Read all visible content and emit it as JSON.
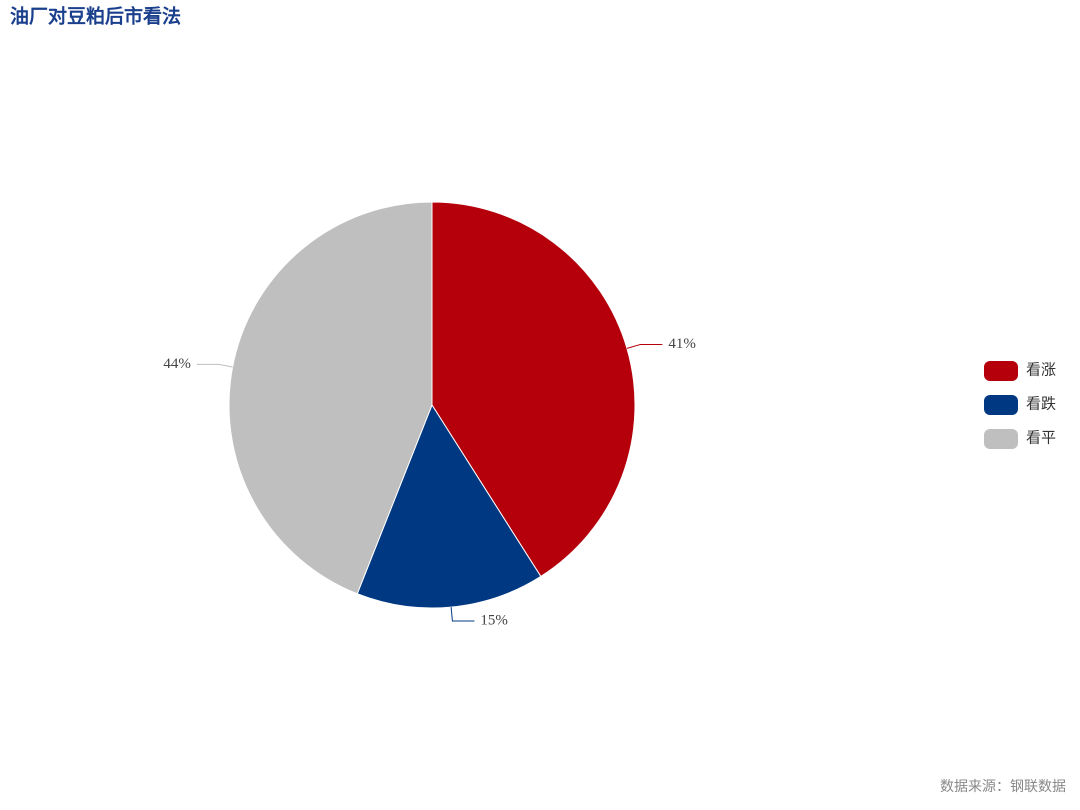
{
  "chart_data": {
    "type": "pie",
    "title": "油厂对豆粕后市看法",
    "source": "数据来源：钢联数据",
    "categories": [
      "看涨",
      "看跌",
      "看平"
    ],
    "values": [
      41,
      15,
      44
    ],
    "value_labels": [
      "41%",
      "15%",
      "44%"
    ],
    "colors": [
      "#b5000b",
      "#003882",
      "#bfbfbf"
    ],
    "legend": "right"
  }
}
